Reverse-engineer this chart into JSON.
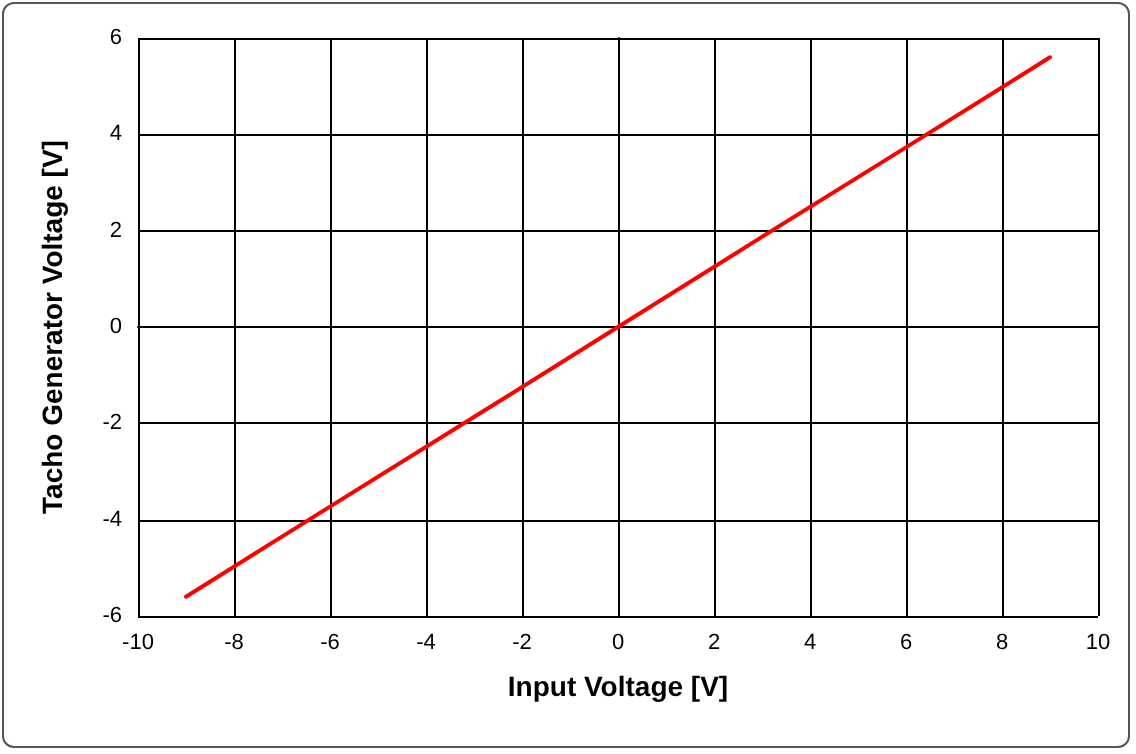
{
  "chart_data": {
    "type": "line",
    "xlabel": "Input Voltage [V]",
    "ylabel": "Tacho Generator Voltage [V]",
    "x": [
      -9,
      -6,
      -3,
      0,
      3,
      6,
      9
    ],
    "series": [
      {
        "color": "#ff0000",
        "values": [
          -5.6,
          -3.73,
          -1.87,
          0,
          1.87,
          3.73,
          5.6
        ]
      }
    ],
    "xlim": [
      -10,
      10
    ],
    "xticks": [
      -10,
      -8,
      -6,
      -4,
      -2,
      0,
      2,
      4,
      6,
      8,
      10
    ],
    "ylim": [
      -6,
      6
    ],
    "yticks": [
      -6,
      -4,
      -2,
      0,
      2,
      4,
      6
    ],
    "grid": true,
    "marker": "none",
    "line_style": "solid"
  }
}
